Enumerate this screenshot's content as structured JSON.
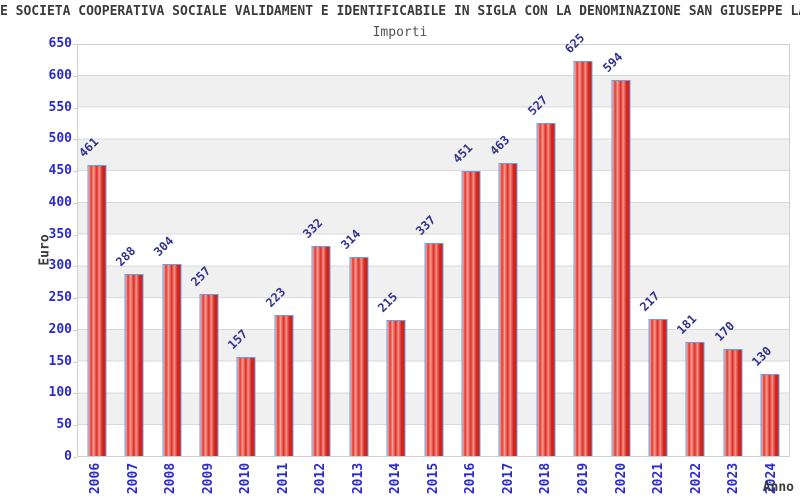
{
  "title": "E SOCIETA COOPERATIVA SOCIALE VALIDAMENT E IDENTIFICABILE IN SIGLA CON LA DENOMINAZIONE SAN GIUSEPPE LAVORATORE S.",
  "subtitle": "Importi",
  "chart_data": {
    "type": "bar",
    "title": "Importi",
    "categories": [
      "2006",
      "2007",
      "2008",
      "2009",
      "2010",
      "2011",
      "2012",
      "2013",
      "2014",
      "2015",
      "2016",
      "2017",
      "2018",
      "2019",
      "2020",
      "2021",
      "2022",
      "2023",
      "2024"
    ],
    "values": [
      461,
      288,
      304,
      257,
      157,
      223,
      332,
      314,
      215,
      337,
      451,
      463,
      527,
      625,
      594,
      217,
      181,
      170,
      130
    ],
    "xlabel": "Anno",
    "ylabel": "Euro",
    "ylim": [
      0,
      650
    ],
    "ytick_step": 50,
    "yticks": [
      0,
      50,
      100,
      150,
      200,
      250,
      300,
      350,
      400,
      450,
      500,
      550,
      600,
      650
    ],
    "grid": true,
    "legend": "none",
    "band_colors": [
      "#ffffff",
      "#f0f0f0"
    ],
    "gridline_color": "#dadada",
    "bar_color": "#df291f",
    "bar_highlight_color": "#f4a199",
    "bar_border_color": "#6b9de4",
    "axis_tick_label_color": "#2a2ad0",
    "value_label_color": "#33338c",
    "title_color": "#3b3b3b"
  }
}
